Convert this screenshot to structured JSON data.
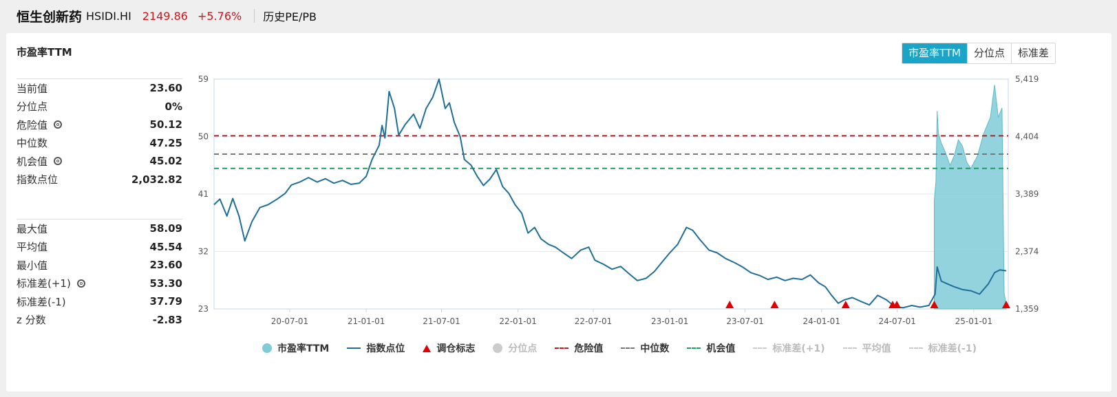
{
  "header": {
    "name": "恒生创新药",
    "code": "HSIDI.HI",
    "price": "2149.86",
    "change": "+5.76%",
    "tab_label": "历史PE/PB"
  },
  "panel": {
    "title": "市盈率TTM",
    "toggle": [
      "市盈率TTM",
      "分位点",
      "标准差"
    ],
    "active_toggle": "市盈率TTM"
  },
  "stats_top": [
    {
      "label": "当前值",
      "value": "23.60",
      "gear": false
    },
    {
      "label": "分位点",
      "value": "0%",
      "gear": false
    },
    {
      "label": "危险值",
      "value": "50.12",
      "gear": true
    },
    {
      "label": "中位数",
      "value": "47.25",
      "gear": false
    },
    {
      "label": "机会值",
      "value": "45.02",
      "gear": true
    },
    {
      "label": "指数点位",
      "value": "2,032.82",
      "gear": false
    }
  ],
  "stats_bottom": [
    {
      "label": "最大值",
      "value": "58.09",
      "gear": false
    },
    {
      "label": "平均值",
      "value": "45.54",
      "gear": false
    },
    {
      "label": "最小值",
      "value": "23.60",
      "gear": false
    },
    {
      "label": "标准差(+1)",
      "value": "53.30",
      "gear": true
    },
    {
      "label": "标准差(-1)",
      "value": "37.79",
      "gear": false
    },
    {
      "label": "z 分数",
      "value": "-2.83",
      "gear": false
    }
  ],
  "colors": {
    "accent": "#1aa4c7",
    "index_line": "#1f6e97",
    "pe_area": "#7fcbd7",
    "danger": "#c8171d",
    "median": "#777777",
    "opportunity": "#1aa15b",
    "marker": "#e00000"
  },
  "legend": [
    {
      "label": "市盈率TTM",
      "kind": "circle",
      "color": "#7fcbd7",
      "active": true
    },
    {
      "label": "指数点位",
      "kind": "line",
      "color": "#1f6e97",
      "active": true
    },
    {
      "label": "调仓标志",
      "kind": "tri",
      "color": "#e00000",
      "active": true
    },
    {
      "label": "分位点",
      "kind": "circle",
      "color": "#cccccc",
      "active": false
    },
    {
      "label": "危险值",
      "kind": "dash",
      "color": "#c8171d",
      "active": true
    },
    {
      "label": "中位数",
      "kind": "dash",
      "color": "#777777",
      "active": true
    },
    {
      "label": "机会值",
      "kind": "dash",
      "color": "#1aa15b",
      "active": true
    },
    {
      "label": "标准差(+1)",
      "kind": "dash",
      "color": "#cccccc",
      "active": false
    },
    {
      "label": "平均值",
      "kind": "dash",
      "color": "#cccccc",
      "active": false
    },
    {
      "label": "标准差(-1)",
      "kind": "dash",
      "color": "#cccccc",
      "active": false
    }
  ],
  "chart_data": {
    "type": "line",
    "x_ticks": [
      "20-07-01",
      "21-01-01",
      "21-07-01",
      "22-01-01",
      "22-07-01",
      "23-01-01",
      "23-07-01",
      "24-01-01",
      "24-07-01",
      "25-01-01"
    ],
    "x_range": [
      "2020-01-01",
      "2025-03-25"
    ],
    "left_axis": {
      "label": "市盈率TTM",
      "ticks": [
        23,
        32,
        41,
        50,
        59
      ],
      "range": [
        23,
        59
      ]
    },
    "right_axis": {
      "label": "指数点位",
      "ticks": [
        "1,359",
        "2,374",
        "3,389",
        "4,404",
        "5,419"
      ],
      "range": [
        1359,
        5419
      ]
    },
    "reference_lines": {
      "danger": 50.12,
      "median": 47.25,
      "opportunity": 45.02
    },
    "series": [
      {
        "name": "指数点位",
        "axis": "right",
        "points": [
          [
            "2020-01-01",
            3200
          ],
          [
            "2020-01-15",
            3300
          ],
          [
            "2020-02-01",
            3000
          ],
          [
            "2020-02-15",
            3310
          ],
          [
            "2020-03-01",
            3000
          ],
          [
            "2020-03-15",
            2560
          ],
          [
            "2020-04-01",
            2900
          ],
          [
            "2020-04-20",
            3150
          ],
          [
            "2020-05-10",
            3200
          ],
          [
            "2020-06-01",
            3300
          ],
          [
            "2020-06-20",
            3400
          ],
          [
            "2020-07-05",
            3550
          ],
          [
            "2020-07-25",
            3600
          ],
          [
            "2020-08-15",
            3680
          ],
          [
            "2020-09-05",
            3600
          ],
          [
            "2020-09-25",
            3660
          ],
          [
            "2020-10-15",
            3580
          ],
          [
            "2020-11-05",
            3630
          ],
          [
            "2020-11-25",
            3560
          ],
          [
            "2020-12-15",
            3580
          ],
          [
            "2021-01-01",
            3700
          ],
          [
            "2021-01-15",
            4000
          ],
          [
            "2021-02-01",
            4250
          ],
          [
            "2021-02-08",
            4600
          ],
          [
            "2021-02-15",
            4380
          ],
          [
            "2021-02-25",
            5200
          ],
          [
            "2021-03-10",
            4900
          ],
          [
            "2021-03-20",
            4430
          ],
          [
            "2021-04-05",
            4620
          ],
          [
            "2021-04-25",
            4800
          ],
          [
            "2021-05-10",
            4550
          ],
          [
            "2021-05-25",
            4900
          ],
          [
            "2021-06-10",
            5100
          ],
          [
            "2021-06-25",
            5419
          ],
          [
            "2021-07-10",
            4900
          ],
          [
            "2021-07-20",
            5000
          ],
          [
            "2021-08-01",
            4650
          ],
          [
            "2021-08-15",
            4400
          ],
          [
            "2021-08-25",
            4000
          ],
          [
            "2021-09-10",
            3900
          ],
          [
            "2021-09-25",
            3700
          ],
          [
            "2021-10-10",
            3540
          ],
          [
            "2021-10-25",
            3650
          ],
          [
            "2021-11-10",
            3820
          ],
          [
            "2021-11-25",
            3520
          ],
          [
            "2021-12-10",
            3400
          ],
          [
            "2021-12-25",
            3200
          ],
          [
            "2022-01-10",
            3050
          ],
          [
            "2022-01-25",
            2700
          ],
          [
            "2022-02-10",
            2800
          ],
          [
            "2022-02-25",
            2600
          ],
          [
            "2022-03-15",
            2500
          ],
          [
            "2022-04-01",
            2450
          ],
          [
            "2022-04-20",
            2350
          ],
          [
            "2022-05-10",
            2250
          ],
          [
            "2022-06-01",
            2400
          ],
          [
            "2022-06-20",
            2450
          ],
          [
            "2022-07-05",
            2220
          ],
          [
            "2022-07-25",
            2150
          ],
          [
            "2022-08-15",
            2060
          ],
          [
            "2022-09-05",
            2110
          ],
          [
            "2022-09-25",
            1980
          ],
          [
            "2022-10-15",
            1860
          ],
          [
            "2022-11-05",
            1900
          ],
          [
            "2022-11-25",
            2020
          ],
          [
            "2022-12-15",
            2200
          ],
          [
            "2023-01-01",
            2350
          ],
          [
            "2023-01-20",
            2500
          ],
          [
            "2023-02-10",
            2800
          ],
          [
            "2023-02-25",
            2750
          ],
          [
            "2023-03-15",
            2580
          ],
          [
            "2023-04-05",
            2400
          ],
          [
            "2023-04-25",
            2350
          ],
          [
            "2023-05-15",
            2250
          ],
          [
            "2023-06-05",
            2180
          ],
          [
            "2023-06-25",
            2100
          ],
          [
            "2023-07-15",
            2000
          ],
          [
            "2023-08-05",
            1950
          ],
          [
            "2023-08-25",
            1880
          ],
          [
            "2023-09-15",
            1920
          ],
          [
            "2023-10-05",
            1860
          ],
          [
            "2023-10-25",
            1900
          ],
          [
            "2023-11-15",
            1880
          ],
          [
            "2023-12-05",
            1960
          ],
          [
            "2023-12-25",
            1820
          ],
          [
            "2024-01-10",
            1750
          ],
          [
            "2024-01-25",
            1600
          ],
          [
            "2024-02-10",
            1460
          ],
          [
            "2024-02-25",
            1520
          ],
          [
            "2024-03-15",
            1560
          ],
          [
            "2024-04-05",
            1490
          ],
          [
            "2024-04-25",
            1430
          ],
          [
            "2024-05-15",
            1600
          ],
          [
            "2024-06-05",
            1520
          ],
          [
            "2024-06-25",
            1400
          ],
          [
            "2024-07-15",
            1380
          ],
          [
            "2024-08-05",
            1420
          ],
          [
            "2024-08-25",
            1390
          ],
          [
            "2024-09-15",
            1420
          ],
          [
            "2024-09-30",
            1620
          ],
          [
            "2024-10-05",
            2100
          ],
          [
            "2024-10-15",
            1850
          ],
          [
            "2024-10-30",
            1800
          ],
          [
            "2024-11-15",
            1750
          ],
          [
            "2024-12-05",
            1700
          ],
          [
            "2024-12-25",
            1680
          ],
          [
            "2025-01-15",
            1620
          ],
          [
            "2025-02-05",
            1800
          ],
          [
            "2025-02-20",
            2000
          ],
          [
            "2025-03-05",
            2050
          ],
          [
            "2025-03-20",
            2032.82
          ]
        ]
      },
      {
        "name": "市盈率TTM",
        "axis": "left",
        "points": [
          [
            "2024-09-28",
            40.0
          ],
          [
            "2024-10-02",
            43.0
          ],
          [
            "2024-10-05",
            54.0
          ],
          [
            "2024-10-08",
            50.5
          ],
          [
            "2024-10-15",
            49.0
          ],
          [
            "2024-10-25",
            47.5
          ],
          [
            "2024-11-05",
            45.5
          ],
          [
            "2024-11-15",
            47.0
          ],
          [
            "2024-11-25",
            49.5
          ],
          [
            "2024-12-05",
            48.5
          ],
          [
            "2024-12-15",
            46.0
          ],
          [
            "2024-12-25",
            45.0
          ],
          [
            "2025-01-10",
            47.0
          ],
          [
            "2025-01-25",
            50.5
          ],
          [
            "2025-02-10",
            53.0
          ],
          [
            "2025-02-20",
            58.09
          ],
          [
            "2025-03-01",
            53.0
          ],
          [
            "2025-03-10",
            54.5
          ],
          [
            "2025-03-15",
            25.5
          ],
          [
            "2025-03-20",
            23.6
          ]
        ]
      }
    ],
    "markers": [
      "2023-05-25",
      "2023-09-10",
      "2024-02-28",
      "2024-06-20",
      "2024-06-30",
      "2024-09-28",
      "2025-03-20"
    ]
  }
}
